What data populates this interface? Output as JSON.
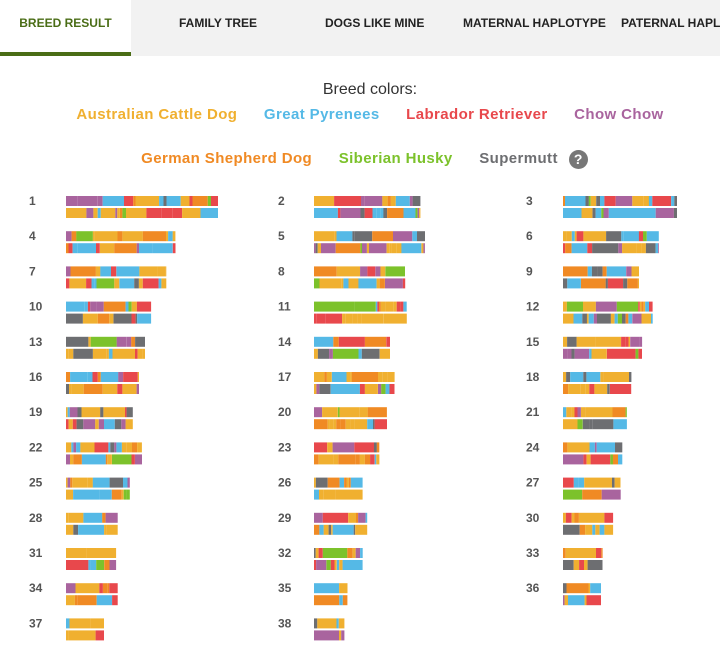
{
  "tabs": [
    {
      "label": "BREED RESULT",
      "active": true
    },
    {
      "label": "FAMILY TREE",
      "active": false
    },
    {
      "label": "DOGS LIKE MINE",
      "active": false
    },
    {
      "label": "MATERNAL HAPLOTYPE",
      "active": false
    },
    {
      "label": "PATERNAL HAPLOTYPE",
      "active": false
    }
  ],
  "legend": {
    "title": "Breed colors:",
    "breeds": [
      {
        "name": "Australian Cattle Dog",
        "color": "#f0b030"
      },
      {
        "name": "Great Pyrenees",
        "color": "#55b9e6"
      },
      {
        "name": "Labrador Retriever",
        "color": "#e8484c"
      },
      {
        "name": "Chow Chow",
        "color": "#a9649e"
      },
      {
        "name": "German Shepherd Dog",
        "color": "#f08a24"
      },
      {
        "name": "Siberian Husky",
        "color": "#7cc22b"
      },
      {
        "name": "Supermutt",
        "color": "#6d6e71"
      }
    ],
    "help_icon": "question-circle-icon",
    "help_symbol": "?"
  },
  "chart_data": {
    "type": "chromosome-painting",
    "chromosomes": [
      {
        "label": "1",
        "relative_length": 1.0
      },
      {
        "label": "2",
        "relative_length": 0.7
      },
      {
        "label": "3",
        "relative_length": 0.75
      },
      {
        "label": "4",
        "relative_length": 0.72
      },
      {
        "label": "5",
        "relative_length": 0.73
      },
      {
        "label": "6",
        "relative_length": 0.63
      },
      {
        "label": "7",
        "relative_length": 0.66
      },
      {
        "label": "8",
        "relative_length": 0.6
      },
      {
        "label": "9",
        "relative_length": 0.5
      },
      {
        "label": "10",
        "relative_length": 0.56
      },
      {
        "label": "11",
        "relative_length": 0.61
      },
      {
        "label": "12",
        "relative_length": 0.59
      },
      {
        "label": "13",
        "relative_length": 0.52
      },
      {
        "label": "14",
        "relative_length": 0.5
      },
      {
        "label": "15",
        "relative_length": 0.52
      },
      {
        "label": "16",
        "relative_length": 0.48
      },
      {
        "label": "17",
        "relative_length": 0.53
      },
      {
        "label": "18",
        "relative_length": 0.45
      },
      {
        "label": "19",
        "relative_length": 0.44
      },
      {
        "label": "20",
        "relative_length": 0.48
      },
      {
        "label": "21",
        "relative_length": 0.42
      },
      {
        "label": "22",
        "relative_length": 0.5
      },
      {
        "label": "23",
        "relative_length": 0.43
      },
      {
        "label": "24",
        "relative_length": 0.39
      },
      {
        "label": "25",
        "relative_length": 0.42
      },
      {
        "label": "26",
        "relative_length": 0.32
      },
      {
        "label": "27",
        "relative_length": 0.38
      },
      {
        "label": "28",
        "relative_length": 0.34
      },
      {
        "label": "29",
        "relative_length": 0.35
      },
      {
        "label": "30",
        "relative_length": 0.33
      },
      {
        "label": "31",
        "relative_length": 0.33
      },
      {
        "label": "32",
        "relative_length": 0.32
      },
      {
        "label": "33",
        "relative_length": 0.26
      },
      {
        "label": "34",
        "relative_length": 0.34
      },
      {
        "label": "35",
        "relative_length": 0.22
      },
      {
        "label": "36",
        "relative_length": 0.25
      },
      {
        "label": "37",
        "relative_length": 0.25
      },
      {
        "label": "38",
        "relative_length": 0.2
      }
    ]
  }
}
